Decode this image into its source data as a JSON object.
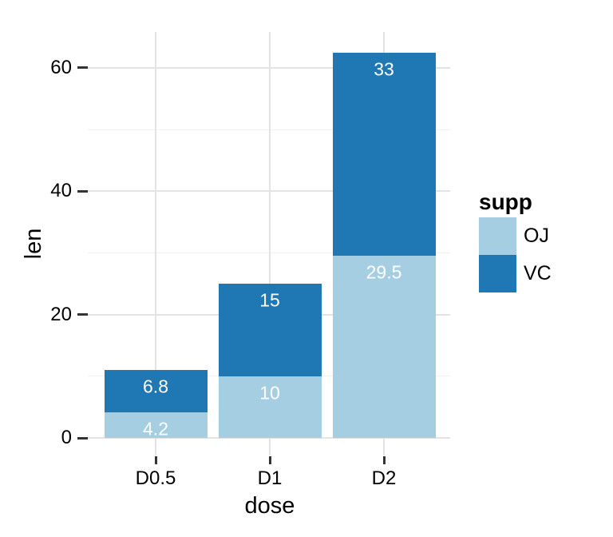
{
  "chart_data": {
    "type": "bar",
    "stacked": true,
    "xlabel": "dose",
    "ylabel": "len",
    "categories": [
      "D0.5",
      "D1",
      "D2"
    ],
    "series": [
      {
        "name": "OJ",
        "color": "#a6cee3",
        "values": [
          4.2,
          10,
          29.5
        ]
      },
      {
        "name": "VC",
        "color": "#1f78b4",
        "values": [
          6.8,
          15,
          33
        ]
      }
    ],
    "bar_value_labels": {
      "OJ": [
        "4.2",
        "10",
        "29.5"
      ],
      "VC": [
        "6.8",
        "15",
        "33"
      ]
    },
    "yticks": [
      0,
      20,
      40,
      60
    ],
    "yminor_ticks": [
      10,
      30,
      50
    ],
    "ylim": [
      -3.1,
      65.8
    ],
    "grid": true,
    "legend": {
      "title": "supp",
      "position": "right",
      "items": [
        {
          "label": "OJ",
          "color": "#a6cee3"
        },
        {
          "label": "VC",
          "color": "#1f78b4"
        }
      ]
    },
    "colors": {
      "bar_label_text": "#ffffff",
      "grid_major": "#e3e3e3",
      "grid_minor": "#f0f0f0",
      "tick": "#333333",
      "axis_text": "#000000",
      "background": "#ffffff"
    }
  }
}
